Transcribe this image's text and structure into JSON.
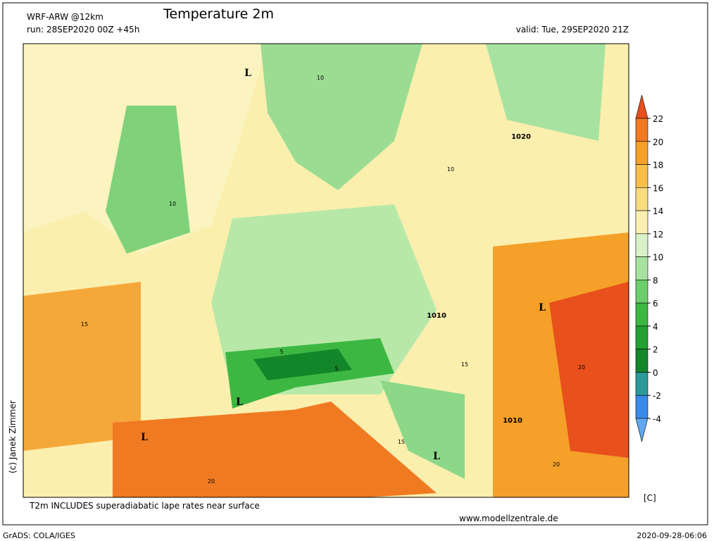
{
  "header": {
    "model": "WRF-ARW @12km",
    "title": "Temperature 2m",
    "run": "run: 28SEP2020 00Z +45h",
    "valid": "valid: Tue, 29SEP2020 21Z"
  },
  "legend": {
    "unit": "[C]",
    "ticks": [
      22,
      20,
      18,
      16,
      14,
      12,
      10,
      8,
      6,
      4,
      2,
      0,
      -2,
      -4
    ],
    "colors": [
      "#e8501c",
      "#f07a22",
      "#f5a028",
      "#f7bf4a",
      "#f9dc80",
      "#fbf0b0",
      "#d8f2c8",
      "#a8e2a0",
      "#6cce6a",
      "#3cb842",
      "#22a030",
      "#14862a",
      "#2a9a9a",
      "#3a8ae8",
      "#60a8f0"
    ]
  },
  "map": {
    "labels": [
      "1020",
      "1010",
      "1010",
      "L",
      "L",
      "L",
      "L",
      "L",
      "10",
      "10",
      "10",
      "15",
      "15",
      "15",
      "20",
      "20",
      "20",
      "5",
      "5"
    ]
  },
  "footer": {
    "credit": "(c) Janek Zimmer",
    "note": "T2m INCLUDES superadiabatic lape rates near surface",
    "site": "www.modellzentrale.de",
    "grads": "GrADS: COLA/IGES",
    "stamp": "2020-09-28-06:06"
  }
}
